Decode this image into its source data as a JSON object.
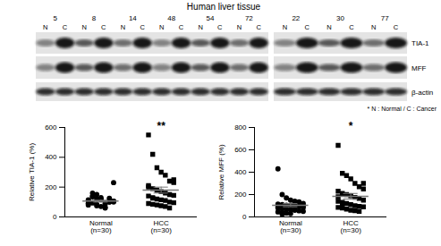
{
  "blot": {
    "title": "Human liver tissue",
    "panels": [
      {
        "samples": [
          "5",
          "8",
          "14",
          "48",
          "54",
          "72"
        ]
      },
      {
        "samples": [
          "22",
          "30",
          "77"
        ]
      }
    ],
    "lanes": [
      "N",
      "C"
    ],
    "rows": [
      "TIA-1",
      "MFF",
      "β-actin"
    ],
    "note": "* N : Normal / C : Cancer"
  },
  "chart_data": [
    {
      "type": "scatter",
      "y_label": "Relative TIA-1 (%)",
      "categories": [
        "Normal\n(n=30)",
        "HCC\n(n=30)"
      ],
      "ylim": [
        0,
        600
      ],
      "yticks": [
        0,
        200,
        400,
        600
      ],
      "color": "#000000",
      "significance": [
        null,
        "**"
      ],
      "groups": [
        {
          "marker": "circle",
          "mean": 106,
          "sem": 6,
          "values": [
            110,
            95,
            120,
            130,
            85,
            100,
            105,
            90,
            140,
            75,
            115,
            60,
            125,
            100,
            80,
            135,
            150,
            70,
            95,
            110,
            105,
            90,
            160,
            85,
            120,
            65,
            100,
            230,
            115,
            95
          ]
        },
        {
          "marker": "square",
          "mean": 180,
          "sem": 20,
          "values": [
            550,
            420,
            330,
            300,
            280,
            240,
            230,
            200,
            190,
            180,
            170,
            160,
            150,
            145,
            140,
            130,
            120,
            115,
            110,
            100,
            95,
            90,
            85,
            80,
            75,
            70,
            60,
            250,
            210,
            125
          ]
        }
      ]
    },
    {
      "type": "scatter",
      "y_label": "Relative MFF (%)",
      "categories": [
        "Normal\n(n=30)",
        "HCC\n(n=30)"
      ],
      "ylim": [
        0,
        800
      ],
      "yticks": [
        0,
        200,
        400,
        600,
        800
      ],
      "color": "#000000",
      "significance": [
        null,
        "*"
      ],
      "groups": [
        {
          "marker": "circle",
          "mean": 105,
          "sem": 14,
          "values": [
            430,
            200,
            170,
            150,
            140,
            130,
            120,
            115,
            110,
            105,
            100,
            95,
            90,
            85,
            80,
            75,
            70,
            65,
            60,
            55,
            50,
            45,
            40,
            35,
            30,
            125,
            135,
            100,
            90,
            25
          ]
        },
        {
          "marker": "square",
          "mean": 185,
          "sem": 25,
          "values": [
            640,
            390,
            370,
            340,
            300,
            270,
            250,
            230,
            210,
            200,
            190,
            175,
            165,
            150,
            140,
            130,
            120,
            110,
            100,
            95,
            90,
            85,
            80,
            70,
            60,
            55,
            50,
            300,
            180,
            120
          ]
        }
      ]
    }
  ]
}
